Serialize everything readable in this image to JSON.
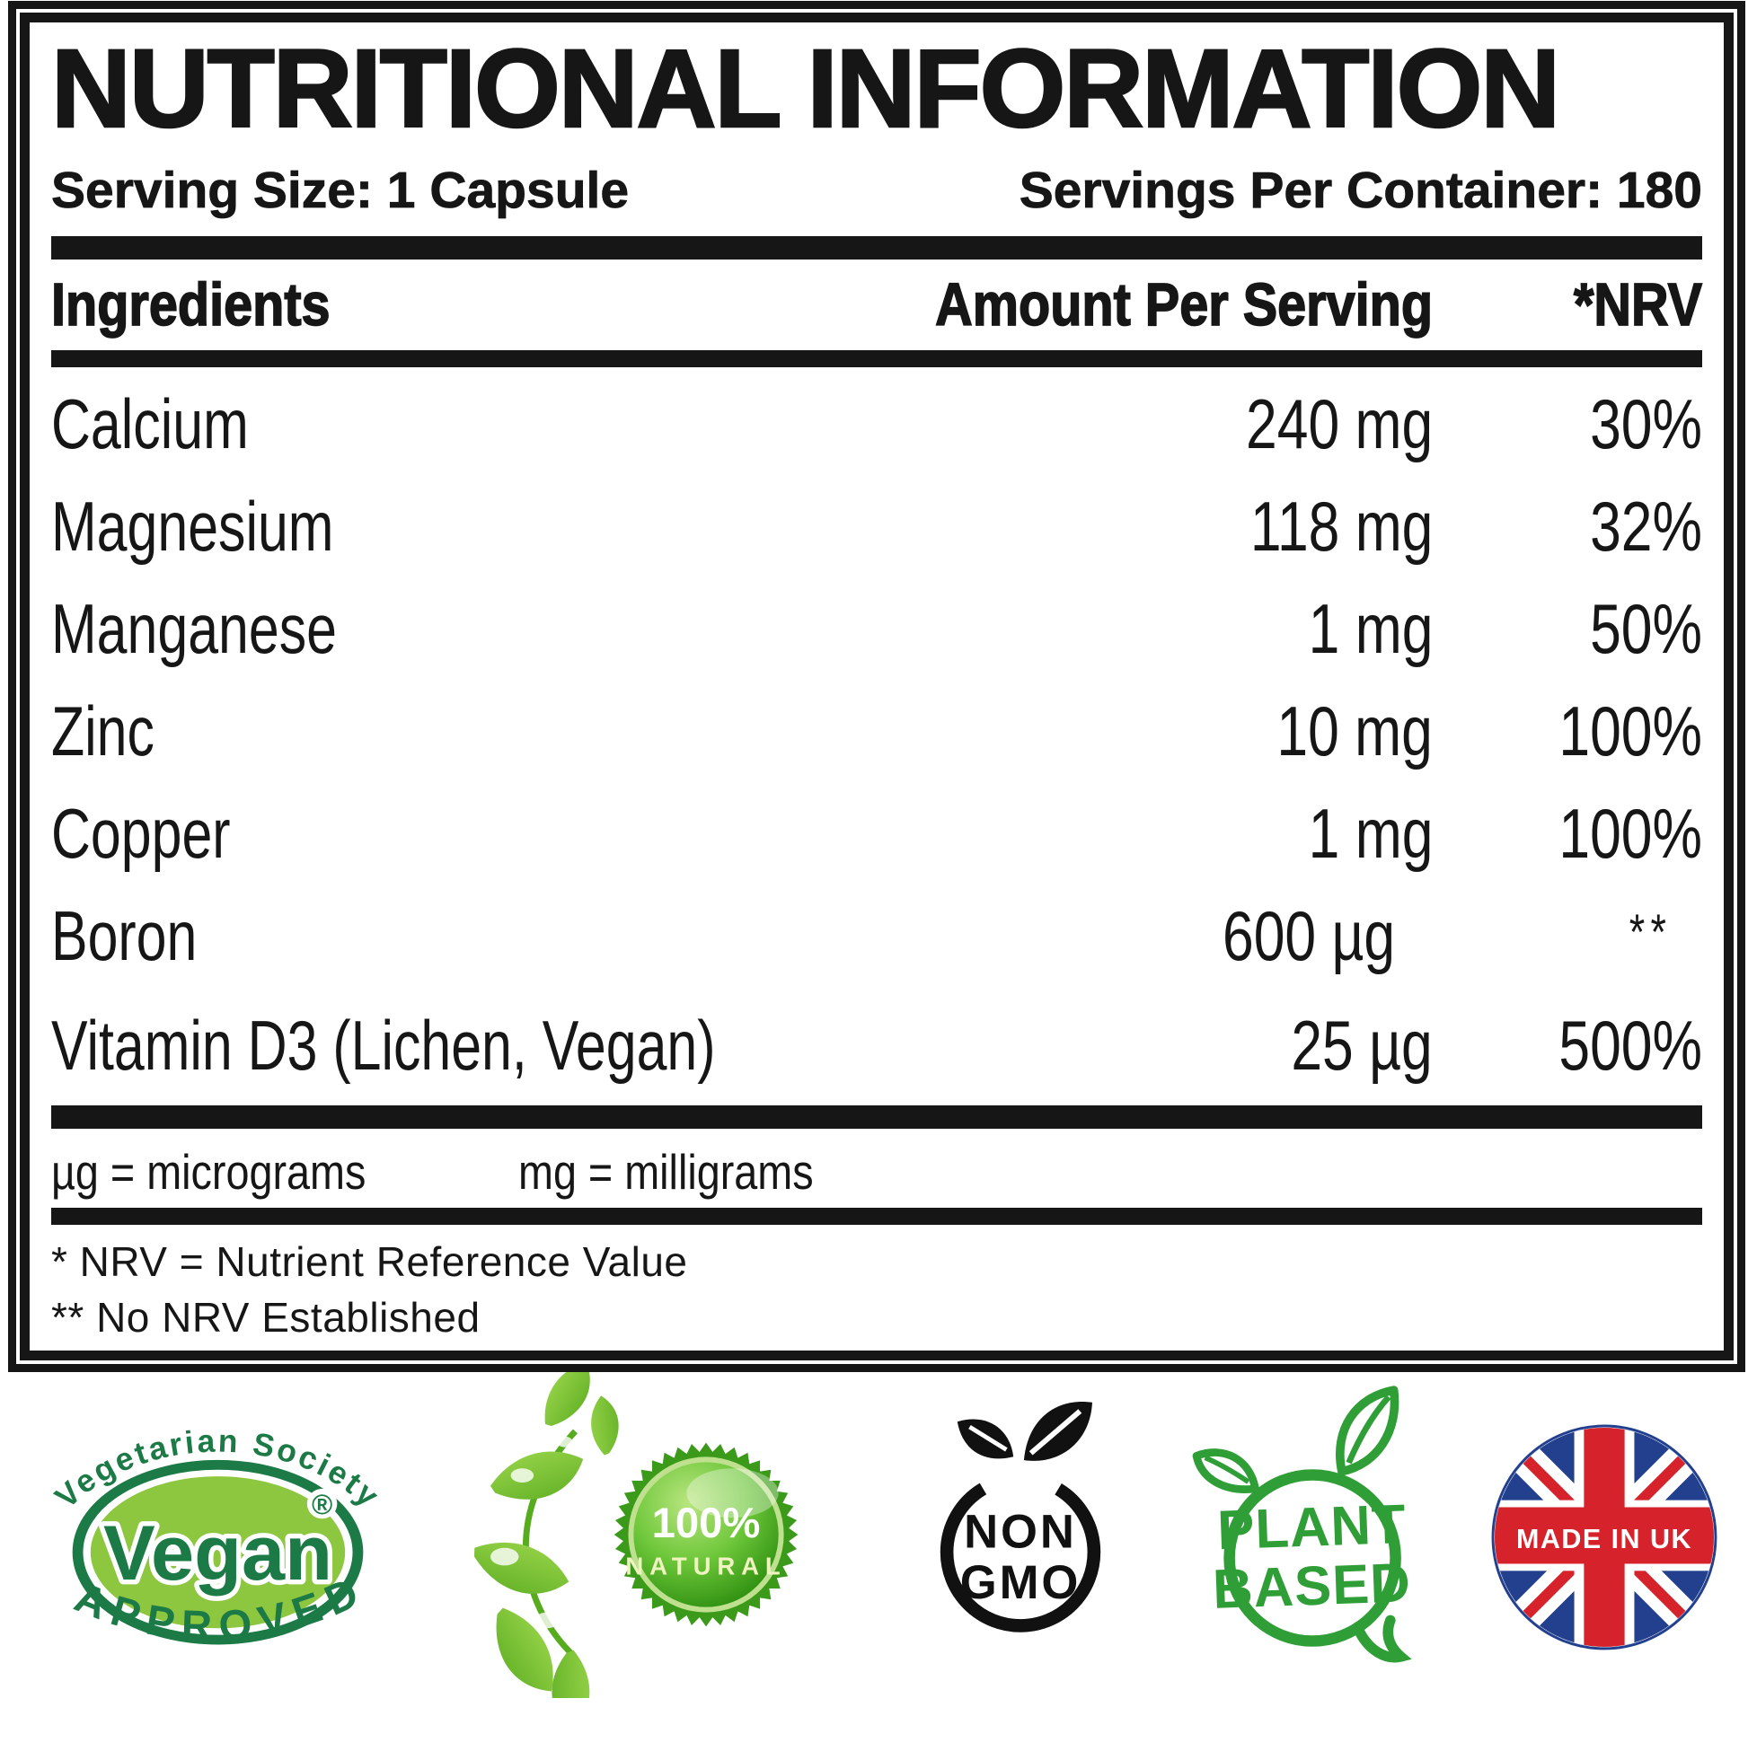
{
  "panel": {
    "title": "NUTRITIONAL INFORMATION",
    "serving_size": "Serving Size: 1 Capsule",
    "servings_per_container": "Servings Per Container: 180"
  },
  "table": {
    "columns": [
      "Ingredients",
      "Amount Per Serving",
      "*NRV"
    ],
    "rows": [
      {
        "name": "Calcium",
        "amount": "240 mg",
        "nrv": "30%"
      },
      {
        "name": "Magnesium",
        "amount": "118 mg",
        "nrv": "32%"
      },
      {
        "name": "Manganese",
        "amount": "1 mg",
        "nrv": "50%"
      },
      {
        "name": "Zinc",
        "amount": "10 mg",
        "nrv": "100%"
      },
      {
        "name": "Copper",
        "amount": "1 mg",
        "nrv": "100%"
      },
      {
        "name": "Boron",
        "amount": "600 µg",
        "nrv": "**"
      },
      {
        "name": "Vitamin D3 (Lichen, Vegan)",
        "amount": "25 µg",
        "nrv": "500%"
      }
    ]
  },
  "footnotes": {
    "micrograms": "µg = micrograms",
    "milligrams": "mg = milligrams",
    "nrv": "* NRV = Nutrient Reference Value",
    "no_nrv": "** No NRV Established"
  },
  "badges": {
    "vegan": {
      "top_arc": "Vegetarian Society",
      "word": "Vegan",
      "registered": "®",
      "bottom_arc": "APPROVED"
    },
    "natural": {
      "percent": "100%",
      "word": "NATURAL"
    },
    "non_gmo": {
      "line1": "NON",
      "line2": "GMO"
    },
    "plant_based": {
      "line1": "PLANT",
      "line2": "BASED"
    },
    "made_in_uk": {
      "label": "MADE IN UK"
    }
  },
  "colors": {
    "ink": "#161616",
    "vegan_green": "#1c7a46",
    "vegan_light_green": "#8dc63f",
    "natural_green": "#3c9a1a",
    "natural_text": "#eef3c0",
    "plant_green": "#2f9e36",
    "uk_blue": "#23408e",
    "uk_red": "#d6232b"
  }
}
